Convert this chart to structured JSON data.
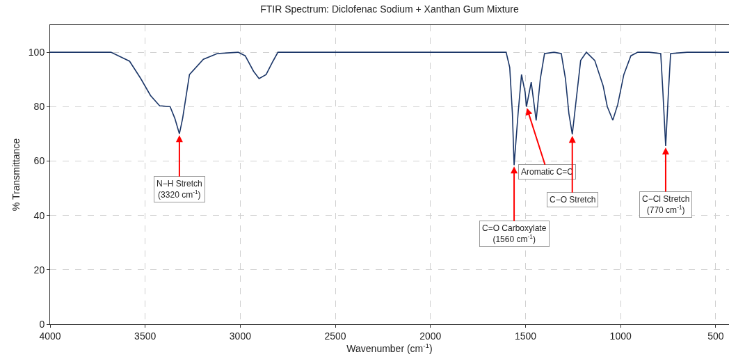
{
  "chart_data": {
    "type": "line",
    "title": "FTIR Spectrum: Diclofenac Sodium + Xanthan Gum Mixture",
    "xlabel": "Wavenumber (cm$^{-1}$)",
    "ylabel": "% Transmittance",
    "xlim": [
      4000,
      430
    ],
    "xticks": [
      4000,
      3500,
      3000,
      2500,
      2000,
      1500,
      1000,
      500
    ],
    "ylim": [
      0,
      110
    ],
    "yticks": [
      0,
      20,
      40,
      60,
      80,
      100
    ],
    "grid": true,
    "marker": "none",
    "line_style": "solid",
    "series": [
      {
        "color": "#1b3668",
        "x": [
          4000,
          3900,
          3800,
          3720,
          3680,
          3582,
          3523,
          3472,
          3424,
          3369,
          3344,
          3320,
          3303,
          3267,
          3194,
          3121,
          3011,
          2974,
          2930,
          2901,
          2864,
          2828,
          2802,
          2600,
          2400,
          2200,
          2000,
          1800,
          1602,
          1583,
          1569,
          1560,
          1539,
          1521,
          1502,
          1495,
          1470,
          1444,
          1422,
          1400,
          1350,
          1312,
          1290,
          1272,
          1254,
          1235,
          1210,
          1180,
          1136,
          1092,
          1070,
          1041,
          1015,
          983,
          946,
          910,
          850,
          789,
          778,
          763,
          748,
          737,
          650,
          550,
          430
        ],
        "values": [
          100,
          100,
          100,
          100,
          100,
          96.7,
          90.3,
          84.1,
          80.3,
          80,
          75.7,
          70,
          75.7,
          91.8,
          97.4,
          99.5,
          100,
          98.7,
          93,
          90.3,
          91.8,
          96.7,
          100,
          100,
          100,
          100,
          100,
          100,
          100,
          94.4,
          77.5,
          58.5,
          77.5,
          91.8,
          85.2,
          80,
          89,
          74.9,
          90.3,
          99.5,
          100,
          99.5,
          90.3,
          77.5,
          69.8,
          81.6,
          97,
          100,
          97,
          87.7,
          80,
          75,
          80.8,
          91.8,
          98.7,
          100,
          100,
          99.5,
          86,
          65.5,
          86,
          99.5,
          100,
          100,
          100
        ]
      }
    ],
    "annotations": [
      {
        "text": "N−H Stretch\n(3320 cm$^{-1}$)",
        "x": 3320,
        "y": 70
      },
      {
        "text": "Aromatic C=C",
        "x": 1495,
        "y": 80
      },
      {
        "text": "C=O Carboxylate\n(1560 cm$^{-1}$)",
        "x": 1560,
        "y": 58.5
      },
      {
        "text": "C−O Stretch",
        "x": 1254,
        "y": 69.8
      },
      {
        "text": "C−Cl Stretch\n(770 cm$^{-1}$)",
        "x": 763,
        "y": 65.5
      }
    ]
  }
}
